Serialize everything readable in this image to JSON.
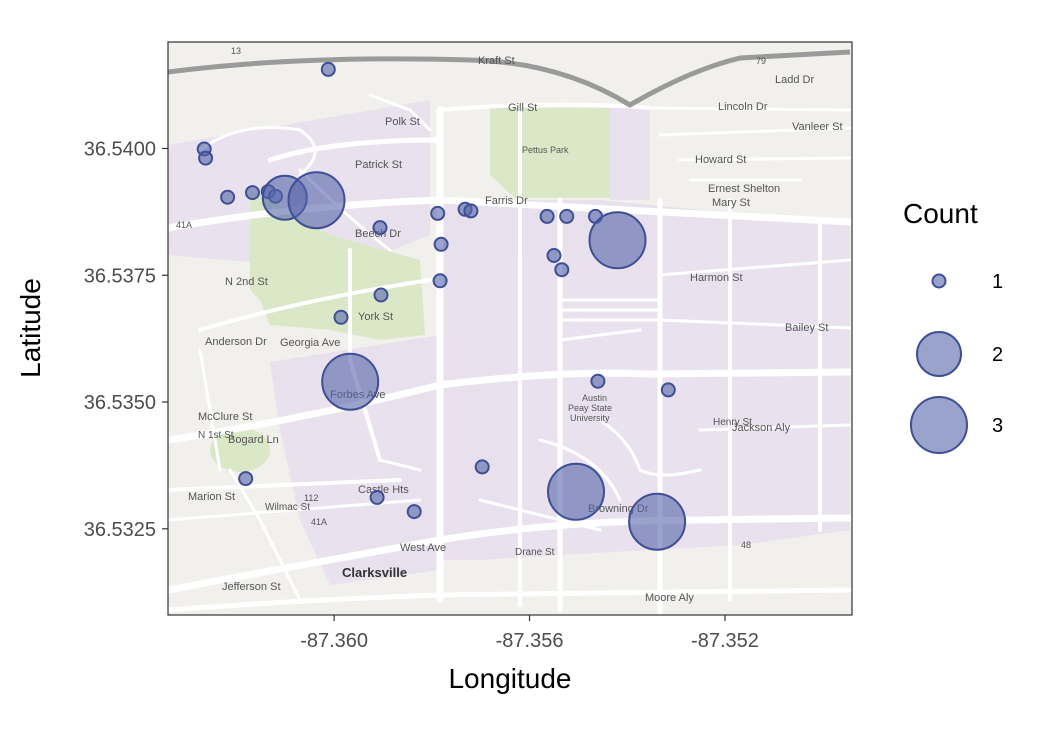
{
  "chart_data": {
    "type": "scatter",
    "xlabel": "Longitude",
    "ylabel": "Latitude",
    "xlim": [
      -87.3634,
      -87.3494
    ],
    "ylim": [
      36.5308,
      36.5421
    ],
    "x_ticks": [
      -87.36,
      -87.356,
      -87.352
    ],
    "x_tick_labels": [
      "-87.360",
      "-87.356",
      "-87.352"
    ],
    "y_ticks": [
      36.5325,
      36.535,
      36.5375,
      36.54
    ],
    "y_tick_labels": [
      "36.5325",
      "36.5350",
      "36.5375",
      "36.5400"
    ],
    "legend": {
      "title": "Count",
      "placement": "right",
      "entries": [
        {
          "label": "1",
          "value": 1
        },
        {
          "label": "2",
          "value": 2
        },
        {
          "label": "3",
          "value": 3
        }
      ]
    },
    "point_color": "#5565a8",
    "point_stroke": "#3e4f96",
    "grid": false,
    "points": [
      {
        "x": -87.36012,
        "y": 36.54156,
        "count": 1
      },
      {
        "x": -87.36266,
        "y": 36.53999,
        "count": 1
      },
      {
        "x": -87.36263,
        "y": 36.53981,
        "count": 1
      },
      {
        "x": -87.36218,
        "y": 36.53904,
        "count": 1
      },
      {
        "x": -87.36167,
        "y": 36.53913,
        "count": 1
      },
      {
        "x": -87.36135,
        "y": 36.53915,
        "count": 1
      },
      {
        "x": -87.3612,
        "y": 36.53906,
        "count": 1
      },
      {
        "x": -87.36101,
        "y": 36.53903,
        "count": 2
      },
      {
        "x": -87.36036,
        "y": 36.53898,
        "count": 3
      },
      {
        "x": -87.35906,
        "y": 36.53844,
        "count": 1
      },
      {
        "x": -87.35788,
        "y": 36.53872,
        "count": 1
      },
      {
        "x": -87.35732,
        "y": 36.5388,
        "count": 1
      },
      {
        "x": -87.3572,
        "y": 36.53877,
        "count": 1
      },
      {
        "x": -87.35781,
        "y": 36.53811,
        "count": 1
      },
      {
        "x": -87.35783,
        "y": 36.53739,
        "count": 1
      },
      {
        "x": -87.35986,
        "y": 36.53667,
        "count": 1
      },
      {
        "x": -87.35904,
        "y": 36.53711,
        "count": 1
      },
      {
        "x": -87.35967,
        "y": 36.5354,
        "count": 3
      },
      {
        "x": -87.35564,
        "y": 36.53866,
        "count": 1
      },
      {
        "x": -87.35524,
        "y": 36.53866,
        "count": 1
      },
      {
        "x": -87.35465,
        "y": 36.53866,
        "count": 1
      },
      {
        "x": -87.3555,
        "y": 36.53789,
        "count": 1
      },
      {
        "x": -87.35534,
        "y": 36.53761,
        "count": 1
      },
      {
        "x": -87.3542,
        "y": 36.53819,
        "count": 3
      },
      {
        "x": -87.3546,
        "y": 36.53541,
        "count": 1
      },
      {
        "x": -87.35316,
        "y": 36.53524,
        "count": 1
      },
      {
        "x": -87.36181,
        "y": 36.53349,
        "count": 1
      },
      {
        "x": -87.35912,
        "y": 36.53312,
        "count": 1
      },
      {
        "x": -87.35836,
        "y": 36.53284,
        "count": 1
      },
      {
        "x": -87.35697,
        "y": 36.53372,
        "count": 1
      },
      {
        "x": -87.35505,
        "y": 36.53323,
        "count": 3
      },
      {
        "x": -87.35339,
        "y": 36.53264,
        "count": 3
      }
    ]
  },
  "map_labels": {
    "kraft": "Kraft St",
    "gill": "Gill St",
    "ladd": "Ladd Dr",
    "lincoln": "Lincoln Dr",
    "vanleer": "Vanleer St",
    "polk": "Polk St",
    "patrick": "Patrick St",
    "pettus": "Pettus Park",
    "howard": "Howard St",
    "ernest": "Ernest Shelton",
    "mary": "Mary St",
    "farris": "Farris Dr",
    "beech": "Beech Dr",
    "harmon": "Harmon St",
    "bailey": "Bailey St",
    "georgia": "Georgia Ave",
    "york": "York St",
    "forbes": "Forbes Ave",
    "mcclure": "McClure St",
    "anderson": "Anderson Dr",
    "bogard": "Bogard Ln",
    "n1st": "N 1st St",
    "n2nd": "N 2nd St",
    "marion": "Marion St",
    "wilmac": "Wilmac St",
    "castle": "Castle Hts",
    "west": "West Ave",
    "jefferson": "Jefferson St",
    "clarksville": "Clarksville",
    "drane": "Drane St",
    "henry": "Henry St",
    "jackson": "Jackson Aly",
    "browning": "Browning Dr",
    "moore": "Moore Aly",
    "apsu1": "Austin",
    "apsu2": "Peay State",
    "apsu3": "University",
    "r41a": "41A",
    "r112": "112",
    "r48": "48",
    "r79": "79",
    "r13": "13"
  }
}
